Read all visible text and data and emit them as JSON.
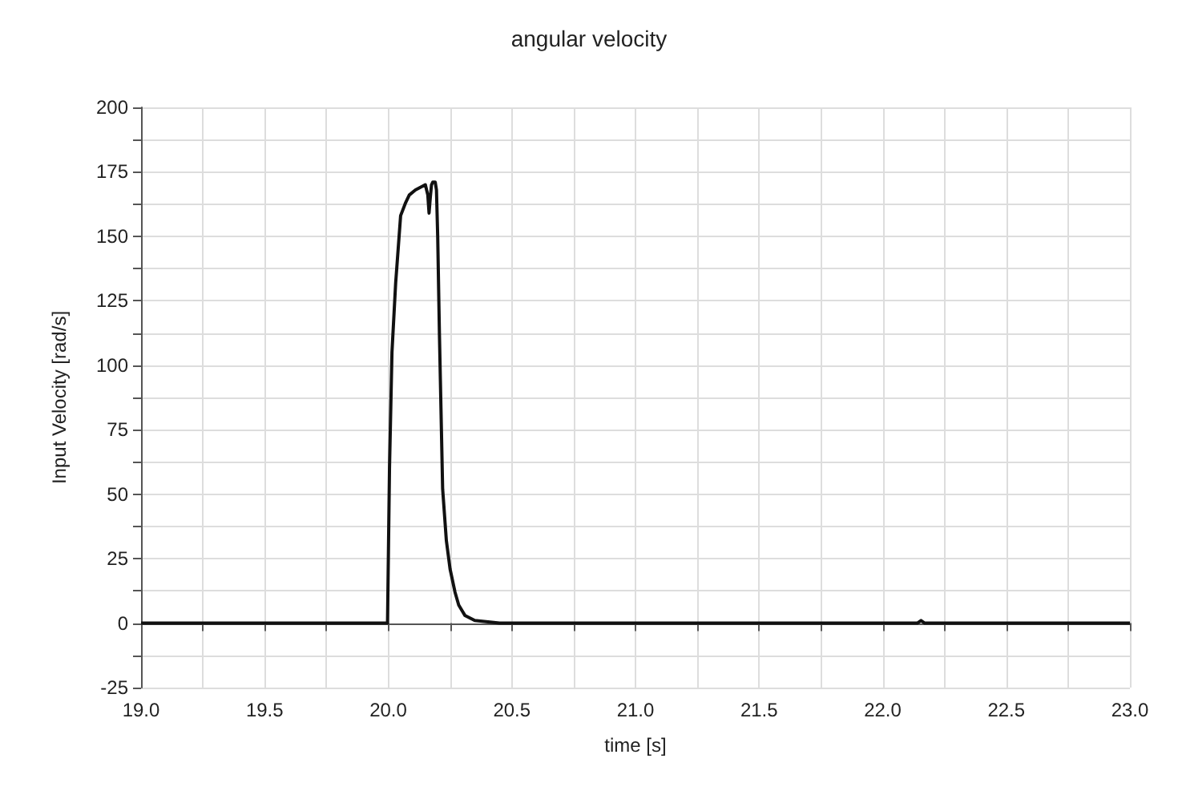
{
  "chart_data": {
    "type": "line",
    "title": "angular velocity",
    "xlabel": "time [s]",
    "ylabel": "Input Velocity [rad/s]",
    "x": [
      19.0,
      19.5,
      19.99,
      19.997,
      20.005,
      20.015,
      20.03,
      20.05,
      20.07,
      20.085,
      20.11,
      20.13,
      20.15,
      20.16,
      20.165,
      20.17,
      20.175,
      20.18,
      20.19,
      20.195,
      20.2,
      20.207,
      20.215,
      20.22,
      20.235,
      20.25,
      20.27,
      20.285,
      20.31,
      20.35,
      20.45,
      21.0,
      22.1,
      22.14,
      22.155,
      22.17,
      22.2,
      23.0
    ],
    "series": [
      {
        "color": "#111111",
        "values": [
          0,
          0,
          0,
          0,
          60,
          105,
          132,
          158,
          163,
          166,
          168,
          169,
          170,
          166,
          159,
          165,
          170,
          171,
          171,
          168,
          150,
          112,
          75,
          52,
          32,
          21,
          12,
          7,
          3,
          1,
          0,
          0,
          0,
          0,
          1,
          0,
          0,
          0
        ]
      }
    ],
    "xlim": [
      19.0,
      23.0
    ],
    "xticks": [
      {
        "value": 19,
        "label": "19.0"
      },
      {
        "value": 19.25,
        "label": null
      },
      19.5,
      {
        "value": 19.75,
        "label": null
      },
      {
        "value": 20,
        "label": "20.0"
      },
      {
        "value": 20.25,
        "label": null
      },
      20.5,
      {
        "value": 20.75,
        "label": null
      },
      {
        "value": 21,
        "label": "21.0"
      },
      {
        "value": 21.25,
        "label": null
      },
      21.5,
      {
        "value": 21.75,
        "label": null
      },
      {
        "value": 22,
        "label": "22.0"
      },
      {
        "value": 22.25,
        "label": null
      },
      22.5,
      {
        "value": 22.75,
        "label": null
      },
      {
        "value": 23,
        "label": "23.0"
      }
    ],
    "ylim": [
      -25,
      200
    ],
    "yticks": [
      -25,
      {
        "value": -12.5,
        "label": null
      },
      0,
      {
        "value": 12.5,
        "label": null
      },
      25,
      {
        "value": 37.5,
        "label": null
      },
      50,
      {
        "value": 62.5,
        "label": null
      },
      75,
      {
        "value": 87.5,
        "label": null
      },
      100,
      {
        "value": 112.5,
        "label": null
      },
      125,
      {
        "value": 137.5,
        "label": null
      },
      150,
      {
        "value": 162.5,
        "label": null
      },
      175,
      {
        "value": 187.5,
        "label": null
      },
      200
    ],
    "grid": true,
    "marker": "none",
    "line_style": "solid"
  }
}
